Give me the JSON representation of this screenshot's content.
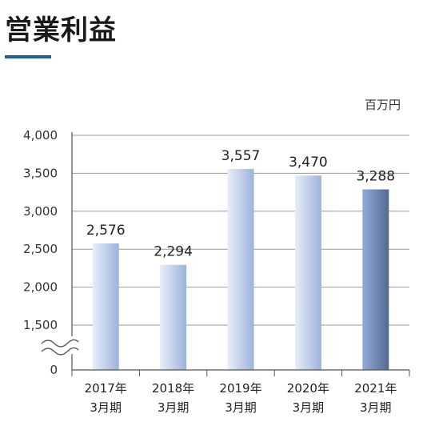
{
  "header": {
    "title": "営業利益"
  },
  "chart_data": {
    "type": "bar",
    "unit": "百万円",
    "categories": [
      [
        "2017年",
        "3月期"
      ],
      [
        "2018年",
        "3月期"
      ],
      [
        "2019年",
        "3月期"
      ],
      [
        "2020年",
        "3月期"
      ],
      [
        "2021年",
        "3月期"
      ]
    ],
    "values": [
      2576,
      2294,
      3557,
      3470,
      3288
    ],
    "value_labels": [
      "2,576",
      "2,294",
      "3,557",
      "3,470",
      "3,288"
    ],
    "yticks": [
      {
        "value": 0,
        "label": "0"
      },
      {
        "value": 1500,
        "label": "1,500"
      },
      {
        "value": 2000,
        "label": "2,000"
      },
      {
        "value": 2500,
        "label": "2,500"
      },
      {
        "value": 3000,
        "label": "3,000"
      },
      {
        "value": 3500,
        "label": "3,500"
      },
      {
        "value": 4000,
        "label": "4,000"
      }
    ],
    "ylim": [
      0,
      4000
    ],
    "axis_break": true,
    "grid": true,
    "colors": {
      "bar_light": "#e6ecf7",
      "bar_mid": "#9fb4dc",
      "bar_highlight_light": "#8ea6d6",
      "bar_highlight_dark": "#56709c",
      "grid": "#9a9a9a"
    }
  }
}
